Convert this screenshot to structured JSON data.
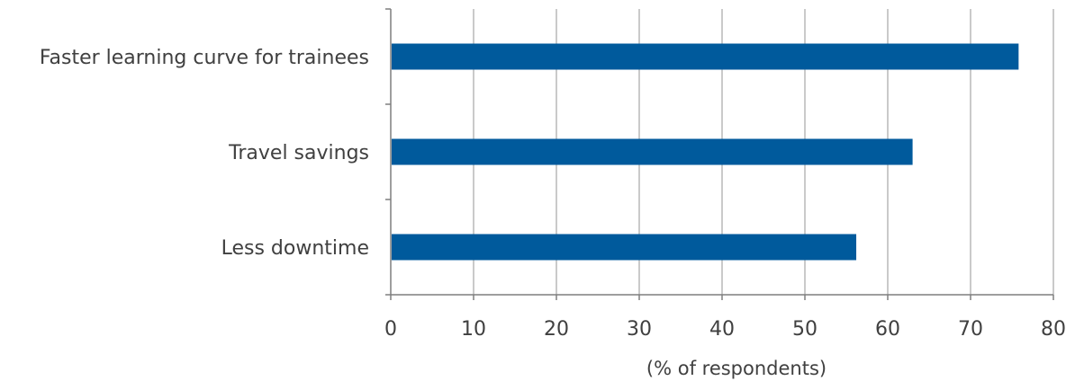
{
  "chart_data": {
    "type": "bar",
    "orientation": "horizontal",
    "categories": [
      "Faster learning curve for trainees",
      "Travel savings",
      "Less downtime"
    ],
    "values": [
      75.8,
      63,
      56.2
    ],
    "xlabel": "(% of respondents)",
    "ylabel": "",
    "xlim": [
      0,
      80
    ],
    "xticks": [
      "0",
      "10",
      "20",
      "30",
      "40",
      "50",
      "60",
      "70",
      "80"
    ],
    "grid": true,
    "bar_color": "#005a9c"
  }
}
